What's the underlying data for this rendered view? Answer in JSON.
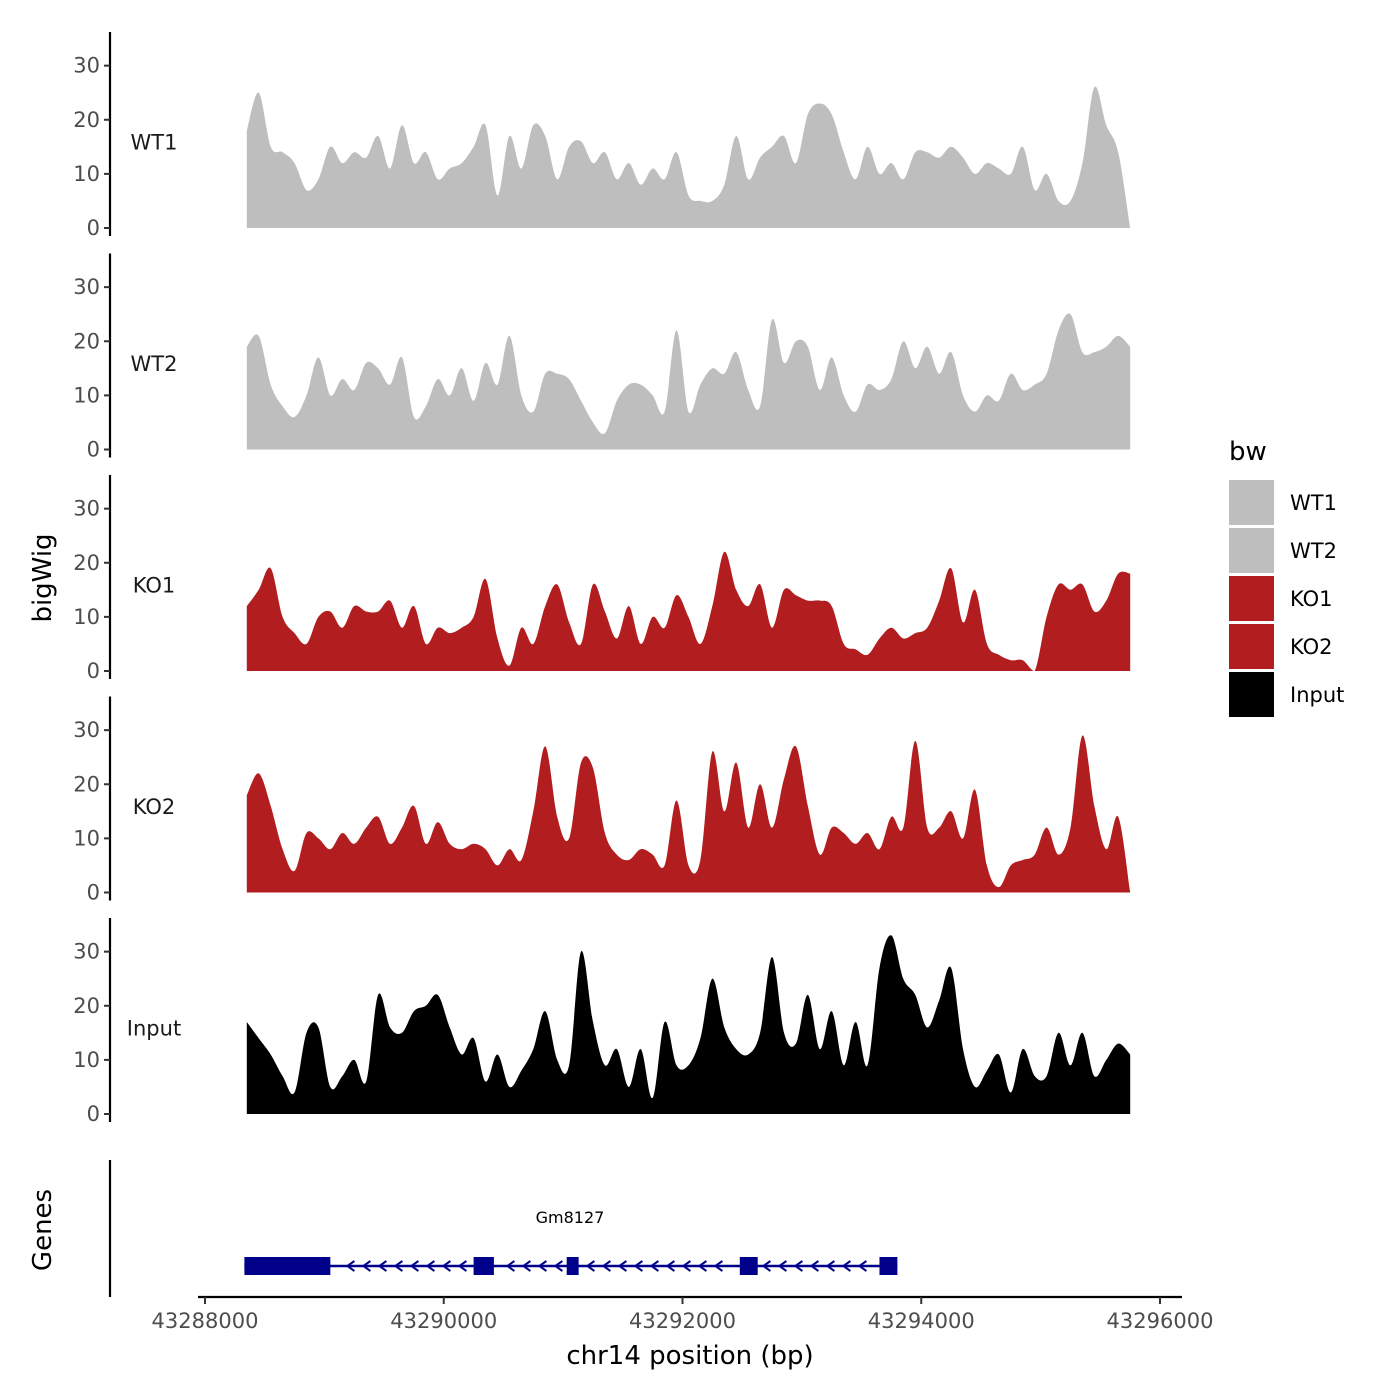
{
  "chart_data": {
    "type": "area",
    "ylabel": "bigWig",
    "genes_label": "Genes",
    "xlabel": "chr14 position (bp)",
    "xlim": [
      43287800,
      43296200
    ],
    "x_ticks": [
      43288000,
      43290000,
      43292000,
      43294000,
      43296000
    ],
    "x_tick_labels": [
      "43288000",
      "43290000",
      "43292000",
      "43294000",
      "43296000"
    ],
    "ylim": [
      0,
      34
    ],
    "y_ticks": [
      0,
      10,
      20,
      30
    ],
    "y_tick_labels": [
      "0",
      "10",
      "20",
      "30"
    ],
    "legend": {
      "title": "bw",
      "position": "right",
      "entries": [
        {
          "label": "WT1",
          "color": "#bebebe"
        },
        {
          "label": "WT2",
          "color": "#bebebe"
        },
        {
          "label": "KO1",
          "color": "#b21d1f"
        },
        {
          "label": "KO2",
          "color": "#b21d1f"
        },
        {
          "label": "Input",
          "color": "#000000"
        }
      ]
    },
    "series": [
      {
        "name": "WT1",
        "color": "#bebebe",
        "x": [
          43288350,
          43288450,
          43288550,
          43288650,
          43288750,
          43288850,
          43288950,
          43289050,
          43289150,
          43289250,
          43289350,
          43289450,
          43289550,
          43289650,
          43289750,
          43289850,
          43289950,
          43290050,
          43290150,
          43290250,
          43290350,
          43290450,
          43290550,
          43290650,
          43290750,
          43290850,
          43290950,
          43291050,
          43291150,
          43291250,
          43291350,
          43291450,
          43291550,
          43291650,
          43291750,
          43291850,
          43291950,
          43292050,
          43292150,
          43292250,
          43292350,
          43292450,
          43292550,
          43292650,
          43292750,
          43292850,
          43292950,
          43293050,
          43293150,
          43293250,
          43293350,
          43293450,
          43293550,
          43293650,
          43293750,
          43293850,
          43293950,
          43294050,
          43294150,
          43294250,
          43294350,
          43294450,
          43294550,
          43294650,
          43294750,
          43294850,
          43294950,
          43295050,
          43295150,
          43295250,
          43295350,
          43295450,
          43295550,
          43295650,
          43295750
        ],
        "values": [
          18,
          25,
          15,
          14,
          12,
          7,
          9,
          15,
          12,
          14,
          13,
          17,
          11,
          19,
          12,
          14,
          9,
          11,
          12,
          15,
          19,
          6,
          17,
          11,
          19,
          17,
          9,
          15,
          16,
          12,
          14,
          9,
          12,
          8,
          11,
          9,
          14,
          6,
          5,
          5,
          8,
          17,
          9,
          13,
          15,
          17,
          12,
          21,
          23,
          21,
          14,
          9,
          15,
          10,
          12,
          9,
          14,
          14,
          13,
          15,
          13,
          10,
          12,
          11,
          10,
          15,
          7,
          10,
          5,
          5,
          12,
          26,
          19,
          14,
          0
        ]
      },
      {
        "name": "WT2",
        "color": "#bebebe",
        "x": [
          43288350,
          43288450,
          43288550,
          43288650,
          43288750,
          43288850,
          43288950,
          43289050,
          43289150,
          43289250,
          43289350,
          43289450,
          43289550,
          43289650,
          43289750,
          43289850,
          43289950,
          43290050,
          43290150,
          43290250,
          43290350,
          43290450,
          43290550,
          43290650,
          43290750,
          43290850,
          43290950,
          43291050,
          43291150,
          43291250,
          43291350,
          43291450,
          43291550,
          43291650,
          43291750,
          43291850,
          43291950,
          43292050,
          43292150,
          43292250,
          43292350,
          43292450,
          43292550,
          43292650,
          43292750,
          43292850,
          43292950,
          43293050,
          43293150,
          43293250,
          43293350,
          43293450,
          43293550,
          43293650,
          43293750,
          43293850,
          43293950,
          43294050,
          43294150,
          43294250,
          43294350,
          43294450,
          43294550,
          43294650,
          43294750,
          43294850,
          43294950,
          43295050,
          43295150,
          43295250,
          43295350,
          43295450,
          43295550,
          43295650,
          43295750
        ],
        "values": [
          19,
          21,
          12,
          8,
          6,
          10,
          17,
          10,
          13,
          11,
          16,
          15,
          12,
          17,
          6,
          8,
          13,
          10,
          15,
          9,
          16,
          12,
          21,
          10,
          7,
          14,
          14,
          13,
          9,
          5,
          3,
          9,
          12,
          12,
          10,
          7,
          22,
          7,
          12,
          15,
          14,
          18,
          11,
          8,
          24,
          16,
          20,
          19,
          11,
          17,
          10,
          7,
          12,
          11,
          13,
          20,
          15,
          19,
          14,
          18,
          10,
          7,
          10,
          9,
          14,
          11,
          12,
          14,
          22,
          25,
          18,
          18,
          19,
          21,
          19
        ]
      },
      {
        "name": "KO1",
        "color": "#b21d1f",
        "x": [
          43288350,
          43288450,
          43288550,
          43288650,
          43288750,
          43288850,
          43288950,
          43289050,
          43289150,
          43289250,
          43289350,
          43289450,
          43289550,
          43289650,
          43289750,
          43289850,
          43289950,
          43290050,
          43290150,
          43290250,
          43290350,
          43290450,
          43290550,
          43290650,
          43290750,
          43290850,
          43290950,
          43291050,
          43291150,
          43291250,
          43291350,
          43291450,
          43291550,
          43291650,
          43291750,
          43291850,
          43291950,
          43292050,
          43292150,
          43292250,
          43292350,
          43292450,
          43292550,
          43292650,
          43292750,
          43292850,
          43292950,
          43293050,
          43293150,
          43293250,
          43293350,
          43293450,
          43293550,
          43293650,
          43293750,
          43293850,
          43293950,
          43294050,
          43294150,
          43294250,
          43294350,
          43294450,
          43294550,
          43294650,
          43294750,
          43294850,
          43294950,
          43295050,
          43295150,
          43295250,
          43295350,
          43295450,
          43295550,
          43295650,
          43295750
        ],
        "values": [
          12,
          15,
          19,
          10,
          7,
          5,
          10,
          11,
          8,
          12,
          11,
          11,
          13,
          8,
          12,
          5,
          8,
          7,
          8,
          10,
          17,
          6,
          1,
          8,
          5,
          12,
          16,
          9,
          5,
          16,
          11,
          6,
          12,
          5,
          10,
          8,
          14,
          10,
          5,
          12,
          22,
          15,
          12,
          16,
          8,
          15,
          14,
          13,
          13,
          12,
          5,
          4,
          3,
          6,
          8,
          6,
          7,
          8,
          13,
          19,
          9,
          15,
          5,
          3,
          2,
          2,
          0,
          10,
          16,
          15,
          16,
          11,
          13,
          18,
          18
        ]
      },
      {
        "name": "KO2",
        "color": "#b21d1f",
        "x": [
          43288350,
          43288450,
          43288550,
          43288650,
          43288750,
          43288850,
          43288950,
          43289050,
          43289150,
          43289250,
          43289350,
          43289450,
          43289550,
          43289650,
          43289750,
          43289850,
          43289950,
          43290050,
          43290150,
          43290250,
          43290350,
          43290450,
          43290550,
          43290650,
          43290750,
          43290850,
          43290950,
          43291050,
          43291150,
          43291250,
          43291350,
          43291450,
          43291550,
          43291650,
          43291750,
          43291850,
          43291950,
          43292050,
          43292150,
          43292250,
          43292350,
          43292450,
          43292550,
          43292650,
          43292750,
          43292850,
          43292950,
          43293050,
          43293150,
          43293250,
          43293350,
          43293450,
          43293550,
          43293650,
          43293750,
          43293850,
          43293950,
          43294050,
          43294150,
          43294250,
          43294350,
          43294450,
          43294550,
          43294650,
          43294750,
          43294850,
          43294950,
          43295050,
          43295150,
          43295250,
          43295350,
          43295450,
          43295550,
          43295650,
          43295750
        ],
        "values": [
          18,
          22,
          16,
          8,
          4,
          11,
          10,
          8,
          11,
          9,
          12,
          14,
          9,
          12,
          16,
          9,
          13,
          9,
          8,
          9,
          8,
          5,
          8,
          6,
          15,
          27,
          14,
          10,
          24,
          23,
          11,
          7,
          6,
          8,
          7,
          5,
          17,
          5,
          6,
          26,
          15,
          24,
          12,
          20,
          12,
          21,
          27,
          16,
          7,
          12,
          11,
          9,
          11,
          8,
          14,
          12,
          28,
          12,
          12,
          15,
          10,
          19,
          5,
          1,
          5,
          6,
          7,
          12,
          7,
          12,
          29,
          16,
          8,
          14,
          0
        ]
      },
      {
        "name": "Input",
        "color": "#000000",
        "x": [
          43288350,
          43288450,
          43288550,
          43288650,
          43288750,
          43288850,
          43288950,
          43289050,
          43289150,
          43289250,
          43289350,
          43289450,
          43289550,
          43289650,
          43289750,
          43289850,
          43289950,
          43290050,
          43290150,
          43290250,
          43290350,
          43290450,
          43290550,
          43290650,
          43290750,
          43290850,
          43290950,
          43291050,
          43291150,
          43291250,
          43291350,
          43291450,
          43291550,
          43291650,
          43291750,
          43291850,
          43291950,
          43292050,
          43292150,
          43292250,
          43292350,
          43292450,
          43292550,
          43292650,
          43292750,
          43292850,
          43292950,
          43293050,
          43293150,
          43293250,
          43293350,
          43293450,
          43293550,
          43293650,
          43293750,
          43293850,
          43293950,
          43294050,
          43294150,
          43294250,
          43294350,
          43294450,
          43294550,
          43294650,
          43294750,
          43294850,
          43294950,
          43295050,
          43295150,
          43295250,
          43295350,
          43295450,
          43295550,
          43295650,
          43295750
        ],
        "values": [
          17,
          14,
          11,
          7,
          4,
          15,
          16,
          5,
          7,
          10,
          6,
          22,
          16,
          15,
          19,
          20,
          22,
          16,
          11,
          14,
          6,
          11,
          5,
          8,
          12,
          19,
          10,
          9,
          30,
          17,
          9,
          12,
          5,
          12,
          3,
          17,
          9,
          9,
          14,
          25,
          16,
          12,
          11,
          15,
          29,
          15,
          13,
          22,
          12,
          19,
          9,
          17,
          9,
          27,
          33,
          25,
          22,
          16,
          21,
          27,
          12,
          5,
          8,
          11,
          4,
          12,
          7,
          7,
          15,
          9,
          15,
          7,
          10,
          13,
          11
        ]
      }
    ],
    "gene_track": {
      "gene_name": "Gm8127",
      "strand": "-",
      "color": "#00008b",
      "exons": [
        {
          "start": 43288330,
          "end": 43289050
        },
        {
          "start": 43290250,
          "end": 43290420
        },
        {
          "start": 43291030,
          "end": 43291130
        },
        {
          "start": 43292480,
          "end": 43292630
        },
        {
          "start": 43293650,
          "end": 43293800
        }
      ],
      "intron_span": {
        "start": 43288330,
        "end": 43293800
      }
    }
  }
}
